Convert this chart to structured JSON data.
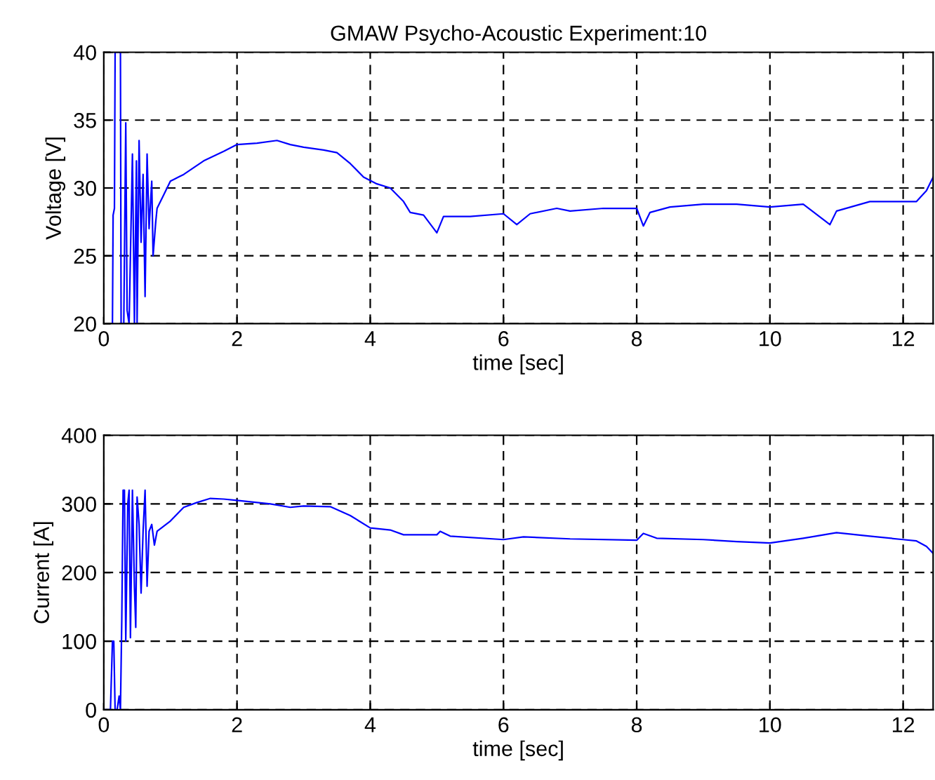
{
  "chart_data": [
    {
      "type": "line",
      "title": "GMAW Psycho-Acoustic Experiment:10",
      "xlabel": "time [sec]",
      "ylabel": "Voltage [V]",
      "xlim": [
        0,
        12.45
      ],
      "xticks": [
        0,
        2,
        4,
        6,
        8,
        10,
        12
      ],
      "ylim": [
        20,
        40
      ],
      "yticks": [
        20,
        25,
        30,
        35,
        40
      ],
      "grid": true,
      "line_style": "solid",
      "series": [
        {
          "color": "#0000ff",
          "x": [
            0.13,
            0.14,
            0.16,
            0.17,
            0.25,
            0.26,
            0.3,
            0.33,
            0.35,
            0.38,
            0.43,
            0.46,
            0.49,
            0.5,
            0.53,
            0.56,
            0.59,
            0.62,
            0.65,
            0.68,
            0.72,
            0.74,
            0.78,
            0.8,
            0.9,
            1.0,
            1.2,
            1.5,
            1.8,
            2.0,
            2.3,
            2.6,
            2.8,
            3.0,
            3.3,
            3.5,
            3.7,
            3.9,
            4.1,
            4.3,
            4.5,
            4.6,
            4.8,
            5.0,
            5.1,
            5.5,
            6.0,
            6.2,
            6.4,
            6.8,
            7.0,
            7.5,
            8.0,
            8.1,
            8.2,
            8.5,
            9.0,
            9.5,
            10,
            10.5,
            10.9,
            11,
            11.5,
            12,
            12.2,
            12.35,
            12.45
          ],
          "values": [
            20,
            28,
            28.5,
            40,
            40,
            20,
            20,
            34.8,
            21,
            20,
            32.5,
            20,
            32,
            20,
            33.5,
            26,
            31,
            22,
            32.5,
            27,
            30.5,
            25,
            27.5,
            28.5,
            29.5,
            30.5,
            31,
            32,
            32.7,
            33.2,
            33.3,
            33.5,
            33.2,
            33,
            32.8,
            32.6,
            31.8,
            30.8,
            30.3,
            30,
            29,
            28.2,
            28,
            26.7,
            27.9,
            27.9,
            28.1,
            27.3,
            28.1,
            28.5,
            28.3,
            28.5,
            28.5,
            27.2,
            28.2,
            28.6,
            28.8,
            28.8,
            28.6,
            28.8,
            27.3,
            28.3,
            29,
            29,
            29,
            29.8,
            30.8
          ]
        }
      ]
    },
    {
      "type": "line",
      "xlabel": "time [sec]",
      "ylabel": "Current [A]",
      "xlim": [
        0,
        12.45
      ],
      "xticks": [
        0,
        2,
        4,
        6,
        8,
        10,
        12
      ],
      "ylim": [
        0,
        400
      ],
      "yticks": [
        0,
        100,
        200,
        300,
        400
      ],
      "grid": true,
      "line_style": "solid",
      "series": [
        {
          "color": "#0000ff",
          "x": [
            0,
            0.1,
            0.13,
            0.15,
            0.17,
            0.2,
            0.23,
            0.25,
            0.27,
            0.29,
            0.31,
            0.33,
            0.36,
            0.38,
            0.4,
            0.43,
            0.46,
            0.48,
            0.5,
            0.53,
            0.56,
            0.59,
            0.62,
            0.65,
            0.68,
            0.72,
            0.76,
            0.8,
            1.0,
            1.2,
            1.4,
            1.6,
            1.8,
            2.0,
            2.5,
            2.8,
            3.0,
            3.4,
            3.7,
            4.0,
            4.3,
            4.5,
            5.0,
            5.05,
            5.2,
            6.0,
            6.3,
            7,
            8,
            8.1,
            8.3,
            9,
            9.5,
            10,
            10.5,
            11,
            11.5,
            12,
            12.2,
            12.35,
            12.45
          ],
          "values": [
            0,
            0,
            100,
            100,
            0,
            0,
            20,
            0,
            130,
            320,
            320,
            100,
            300,
            320,
            105,
            320,
            180,
            120,
            310,
            270,
            170,
            260,
            320,
            180,
            260,
            270,
            240,
            260,
            275,
            295,
            302,
            308,
            307,
            305,
            300,
            295,
            297,
            296,
            283,
            265,
            262,
            255,
            255,
            260,
            253,
            248,
            252,
            249,
            247,
            257,
            250,
            248,
            245,
            243,
            250,
            258,
            253,
            248,
            246,
            238,
            228
          ]
        }
      ]
    }
  ]
}
